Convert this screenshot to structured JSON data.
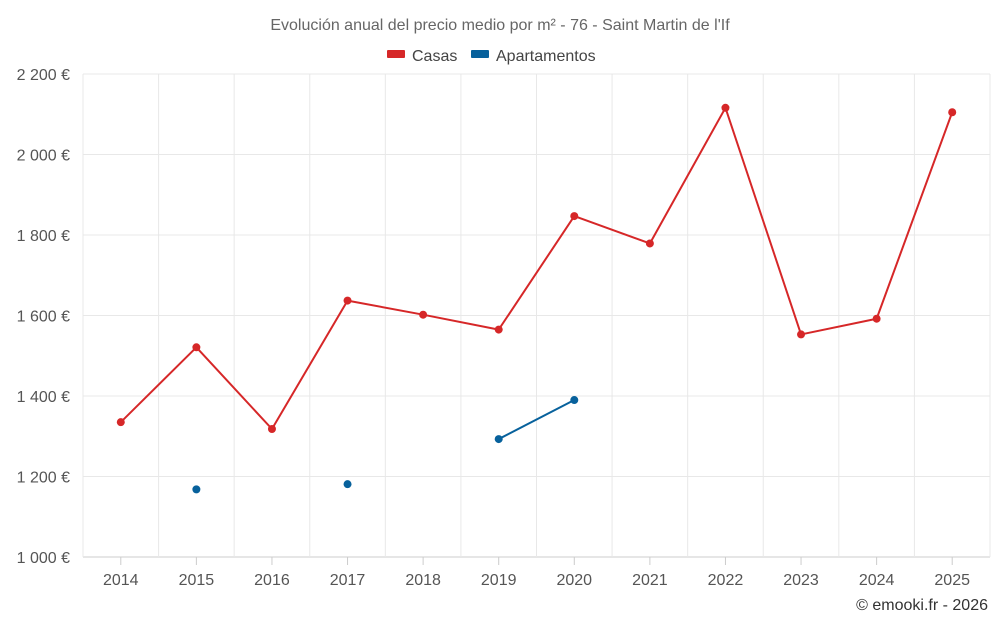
{
  "chart_data": {
    "type": "line",
    "title": "Evolución anual del precio medio por m² - 76 - Saint Martin de l'If",
    "categories": [
      "2014",
      "2015",
      "2016",
      "2017",
      "2018",
      "2019",
      "2020",
      "2021",
      "2022",
      "2023",
      "2024",
      "2025"
    ],
    "y_ticks": [
      "1 000 €",
      "1 200 €",
      "1 400 €",
      "1 600 €",
      "1 800 €",
      "2 000 €",
      "2 200 €"
    ],
    "ylim": [
      1000,
      2200
    ],
    "y_tick_values": [
      1000,
      1200,
      1400,
      1600,
      1800,
      2000,
      2200
    ],
    "grid": true,
    "legend_position": "top-center",
    "series": [
      {
        "name": "Casas",
        "color": "#d62728",
        "values": [
          1335,
          1521,
          1318,
          1637,
          1602,
          1565,
          1847,
          1779,
          2116,
          1553,
          1592,
          2105
        ]
      },
      {
        "name": "Apartamentos",
        "color": "#07619c",
        "values": [
          null,
          1168,
          null,
          1181,
          null,
          1293,
          1390,
          null,
          null,
          null,
          null,
          null
        ]
      }
    ],
    "credit": "© emooki.fr - 2026"
  }
}
